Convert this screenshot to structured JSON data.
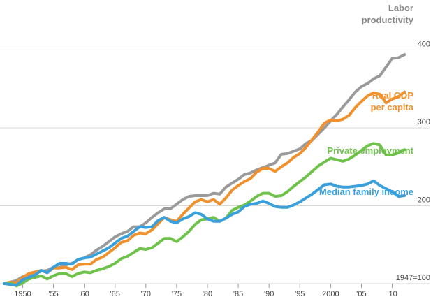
{
  "chart_data": {
    "type": "line",
    "title": "",
    "xlabel": "",
    "ylabel": "",
    "baseline_note": "1947=100",
    "xlim": [
      1947,
      2013
    ],
    "ylim": [
      100,
      430
    ],
    "grid": true,
    "x_ticks": [
      {
        "value": 1950,
        "label": "1950"
      },
      {
        "value": 1955,
        "label": "'55"
      },
      {
        "value": 1960,
        "label": "'60"
      },
      {
        "value": 1965,
        "label": "'65"
      },
      {
        "value": 1970,
        "label": "'70"
      },
      {
        "value": 1975,
        "label": "'75"
      },
      {
        "value": 1980,
        "label": "'80"
      },
      {
        "value": 1985,
        "label": "'85"
      },
      {
        "value": 1990,
        "label": "'90"
      },
      {
        "value": 1995,
        "label": "'95"
      },
      {
        "value": 2000,
        "label": "2000"
      },
      {
        "value": 2005,
        "label": "'05"
      },
      {
        "value": 2010,
        "label": "'10"
      }
    ],
    "y_ticks": [
      {
        "value": 100,
        "label": "1947=100"
      },
      {
        "value": 200,
        "label": "200"
      },
      {
        "value": 300,
        "label": "300"
      },
      {
        "value": 400,
        "label": "400"
      }
    ],
    "x": [
      1947,
      1948,
      1949,
      1950,
      1951,
      1952,
      1953,
      1954,
      1955,
      1956,
      1957,
      1958,
      1959,
      1960,
      1961,
      1962,
      1963,
      1964,
      1965,
      1966,
      1967,
      1968,
      1969,
      1970,
      1971,
      1972,
      1973,
      1974,
      1975,
      1976,
      1977,
      1978,
      1979,
      1980,
      1981,
      1982,
      1983,
      1984,
      1985,
      1986,
      1987,
      1988,
      1989,
      1990,
      1991,
      1992,
      1993,
      1994,
      1995,
      1996,
      1997,
      1998,
      1999,
      2000,
      2001,
      2002,
      2003,
      2004,
      2005,
      2006,
      2007,
      2008,
      2009,
      2010,
      2011,
      2012
    ],
    "series": [
      {
        "name": "Labor productivity",
        "label_lines": [
          "Labor",
          "productivity"
        ],
        "color": "#9a9a9a",
        "values": [
          100,
          102,
          104,
          109,
          111,
          113,
          116,
          117,
          121,
          121,
          124,
          126,
          131,
          133,
          137,
          143,
          148,
          154,
          160,
          164,
          167,
          173,
          173,
          178,
          185,
          191,
          196,
          196,
          202,
          208,
          212,
          213,
          213,
          213,
          216,
          215,
          224,
          229,
          234,
          240,
          242,
          246,
          249,
          252,
          255,
          266,
          267,
          270,
          273,
          280,
          284,
          292,
          300,
          309,
          317,
          327,
          336,
          346,
          353,
          357,
          363,
          367,
          378,
          389,
          390,
          394
        ]
      },
      {
        "name": "Real GDP per capita",
        "label_lines": [
          "Real GDP",
          "per capita"
        ],
        "color": "#f0912e",
        "values": [
          100,
          102,
          101,
          108,
          113,
          115,
          117,
          114,
          120,
          120,
          121,
          118,
          124,
          125,
          125,
          131,
          134,
          140,
          146,
          153,
          155,
          162,
          165,
          164,
          169,
          177,
          185,
          182,
          180,
          189,
          197,
          205,
          208,
          205,
          208,
          202,
          210,
          220,
          226,
          231,
          235,
          243,
          248,
          248,
          244,
          250,
          255,
          262,
          267,
          275,
          285,
          295,
          306,
          310,
          309,
          311,
          316,
          326,
          334,
          341,
          345,
          343,
          332,
          337,
          340,
          346
        ]
      },
      {
        "name": "Private employment",
        "label_lines": [
          "Private employment"
        ],
        "color": "#6ec24a",
        "values": [
          100,
          101,
          97,
          101,
          106,
          108,
          110,
          106,
          110,
          113,
          113,
          109,
          113,
          115,
          114,
          117,
          119,
          122,
          126,
          132,
          135,
          140,
          145,
          144,
          146,
          152,
          158,
          158,
          154,
          160,
          167,
          176,
          182,
          183,
          185,
          180,
          184,
          194,
          198,
          201,
          206,
          212,
          216,
          216,
          212,
          213,
          218,
          225,
          231,
          237,
          244,
          251,
          256,
          261,
          259,
          257,
          260,
          265,
          271,
          277,
          280,
          278,
          265,
          265,
          268,
          272
        ]
      },
      {
        "name": "Median family income",
        "label_lines": [
          "Median family income"
        ],
        "color": "#3aa0dc",
        "values": [
          100,
          99,
          98,
          105,
          108,
          111,
          117,
          114,
          121,
          126,
          126,
          125,
          131,
          133,
          134,
          138,
          142,
          146,
          152,
          158,
          161,
          167,
          173,
          172,
          173,
          181,
          185,
          180,
          178,
          183,
          186,
          191,
          189,
          183,
          180,
          180,
          184,
          189,
          192,
          199,
          202,
          203,
          206,
          203,
          199,
          198,
          198,
          201,
          205,
          210,
          215,
          221,
          227,
          228,
          225,
          224,
          224,
          225,
          226,
          228,
          232,
          226,
          222,
          218,
          212,
          213
        ]
      }
    ]
  }
}
